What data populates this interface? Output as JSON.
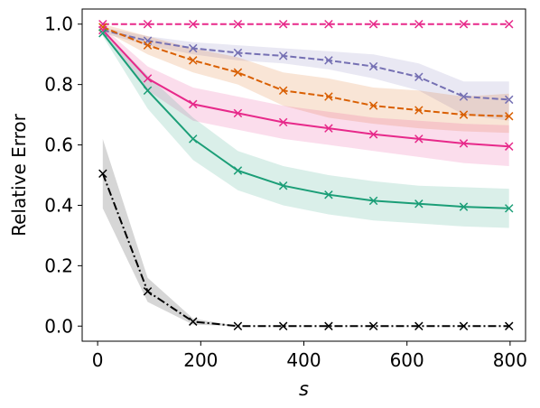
{
  "chart_data": {
    "type": "line",
    "xlabel": "s",
    "ylabel": "Relative Error",
    "xlim": [
      -30,
      830
    ],
    "ylim": [
      -0.05,
      1.05
    ],
    "xticks": [
      0,
      200,
      400,
      600,
      800
    ],
    "yticks": [
      0.0,
      0.2,
      0.4,
      0.6,
      0.8,
      1.0
    ],
    "x": [
      10,
      97,
      185,
      272,
      360,
      448,
      535,
      623,
      710,
      798
    ],
    "series": [
      {
        "color": "#e7298a",
        "dash": "dashed",
        "marker": "x",
        "values": [
          1.0,
          1.0,
          1.0,
          1.0,
          1.0,
          1.0,
          1.0,
          1.0,
          1.0,
          1.0
        ],
        "lower": [
          1.0,
          1.0,
          1.0,
          1.0,
          1.0,
          1.0,
          1.0,
          1.0,
          1.0,
          1.0
        ],
        "upper": [
          1.0,
          1.0,
          1.0,
          1.0,
          1.0,
          1.0,
          1.0,
          1.0,
          1.0,
          1.0
        ]
      },
      {
        "color": "#7570b3",
        "dash": "dashed",
        "marker": "x",
        "values": [
          0.98,
          0.945,
          0.92,
          0.905,
          0.895,
          0.88,
          0.86,
          0.825,
          0.76,
          0.75
        ],
        "lower": [
          0.97,
          0.93,
          0.9,
          0.88,
          0.87,
          0.85,
          0.82,
          0.78,
          0.7,
          0.68
        ],
        "upper": [
          0.99,
          0.96,
          0.94,
          0.93,
          0.92,
          0.91,
          0.9,
          0.87,
          0.81,
          0.81
        ]
      },
      {
        "color": "#d95f02",
        "dash": "dashed",
        "marker": "x",
        "values": [
          0.99,
          0.93,
          0.88,
          0.84,
          0.78,
          0.76,
          0.73,
          0.715,
          0.7,
          0.695
        ],
        "lower": [
          0.98,
          0.9,
          0.84,
          0.8,
          0.73,
          0.69,
          0.67,
          0.655,
          0.645,
          0.64
        ],
        "upper": [
          1.0,
          0.96,
          0.92,
          0.89,
          0.84,
          0.82,
          0.79,
          0.78,
          0.76,
          0.77
        ]
      },
      {
        "color": "#e7298a",
        "dash": "solid",
        "marker": "x",
        "values": [
          0.98,
          0.82,
          0.735,
          0.705,
          0.675,
          0.655,
          0.635,
          0.62,
          0.605,
          0.595
        ],
        "lower": [
          0.97,
          0.78,
          0.68,
          0.65,
          0.62,
          0.6,
          0.58,
          0.56,
          0.54,
          0.53
        ],
        "upper": [
          0.99,
          0.86,
          0.79,
          0.76,
          0.73,
          0.71,
          0.69,
          0.68,
          0.67,
          0.665
        ]
      },
      {
        "color": "#1b9e77",
        "dash": "solid",
        "marker": "x",
        "values": [
          0.97,
          0.78,
          0.62,
          0.515,
          0.465,
          0.435,
          0.415,
          0.405,
          0.395,
          0.39
        ],
        "lower": [
          0.96,
          0.72,
          0.55,
          0.45,
          0.4,
          0.37,
          0.35,
          0.34,
          0.33,
          0.325
        ],
        "upper": [
          0.98,
          0.83,
          0.69,
          0.58,
          0.53,
          0.5,
          0.48,
          0.465,
          0.46,
          0.455
        ]
      },
      {
        "color": "#000000",
        "dash": "dashdot",
        "marker": "x",
        "values": [
          0.505,
          0.115,
          0.015,
          0.0,
          0.0,
          0.0,
          0.0,
          0.0,
          0.0,
          0.0
        ],
        "lower": [
          0.39,
          0.08,
          0.005,
          0.0,
          0.0,
          0.0,
          0.0,
          0.0,
          0.0,
          0.0
        ],
        "upper": [
          0.62,
          0.16,
          0.025,
          0.0,
          0.0,
          0.0,
          0.0,
          0.0,
          0.0,
          0.0
        ]
      }
    ]
  }
}
